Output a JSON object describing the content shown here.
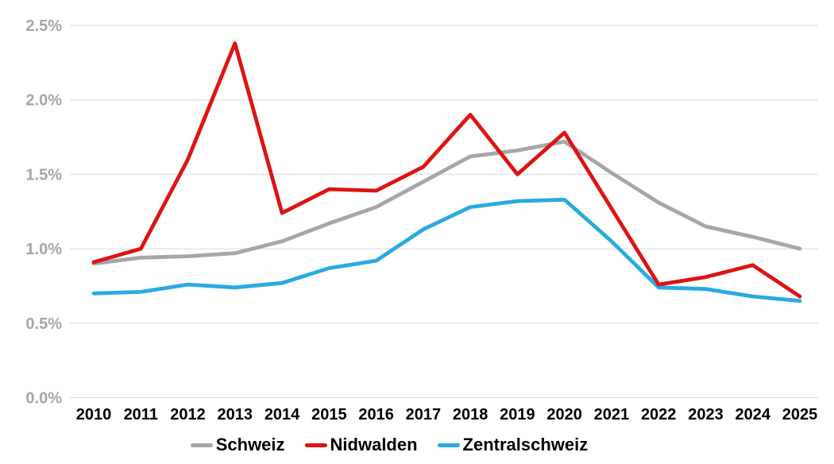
{
  "chart_data": {
    "type": "line",
    "title": "",
    "xlabel": "",
    "ylabel": "",
    "x_labels": [
      "2010",
      "2011",
      "2012",
      "2013",
      "2014",
      "2015",
      "2016",
      "2017",
      "2018",
      "2019",
      "2020",
      "2021",
      "2022",
      "2023",
      "2024",
      "2025"
    ],
    "series": [
      {
        "name": "Schweiz",
        "color": "#a6a6a6",
        "values": [
          0.9,
          0.94,
          0.95,
          0.97,
          1.05,
          1.17,
          1.28,
          1.45,
          1.62,
          1.66,
          1.72,
          1.51,
          1.31,
          1.15,
          1.08,
          1.0
        ]
      },
      {
        "name": "Nidwalden",
        "color": "#dc1414",
        "values": [
          0.91,
          1.0,
          1.6,
          2.38,
          1.24,
          1.4,
          1.39,
          1.55,
          1.9,
          1.5,
          1.78,
          1.27,
          0.76,
          0.81,
          0.89,
          0.68
        ]
      },
      {
        "name": "Zentralschweiz",
        "color": "#29aae1",
        "values": [
          0.7,
          0.71,
          0.76,
          0.74,
          0.77,
          0.87,
          0.92,
          1.13,
          1.28,
          1.32,
          1.33,
          1.05,
          0.74,
          0.73,
          0.68,
          0.65
        ]
      }
    ],
    "ylim": [
      0,
      2.5
    ],
    "yticks": [
      {
        "value": 0.0,
        "label": "0.0%"
      },
      {
        "value": 0.5,
        "label": "0.5%"
      },
      {
        "value": 1.0,
        "label": "1.0%"
      },
      {
        "value": 1.5,
        "label": "1.5%"
      },
      {
        "value": 2.0,
        "label": "2.0%"
      },
      {
        "value": 2.5,
        "label": "2.5%"
      }
    ],
    "grid": "horizontal",
    "legend_position": "bottom",
    "draw_order": [
      0,
      2,
      1
    ],
    "colors": {
      "gridline": "#d9d9d9",
      "ytick_label": "#a6a6a6",
      "xtick_label": "#000000",
      "background": "#ffffff"
    }
  }
}
